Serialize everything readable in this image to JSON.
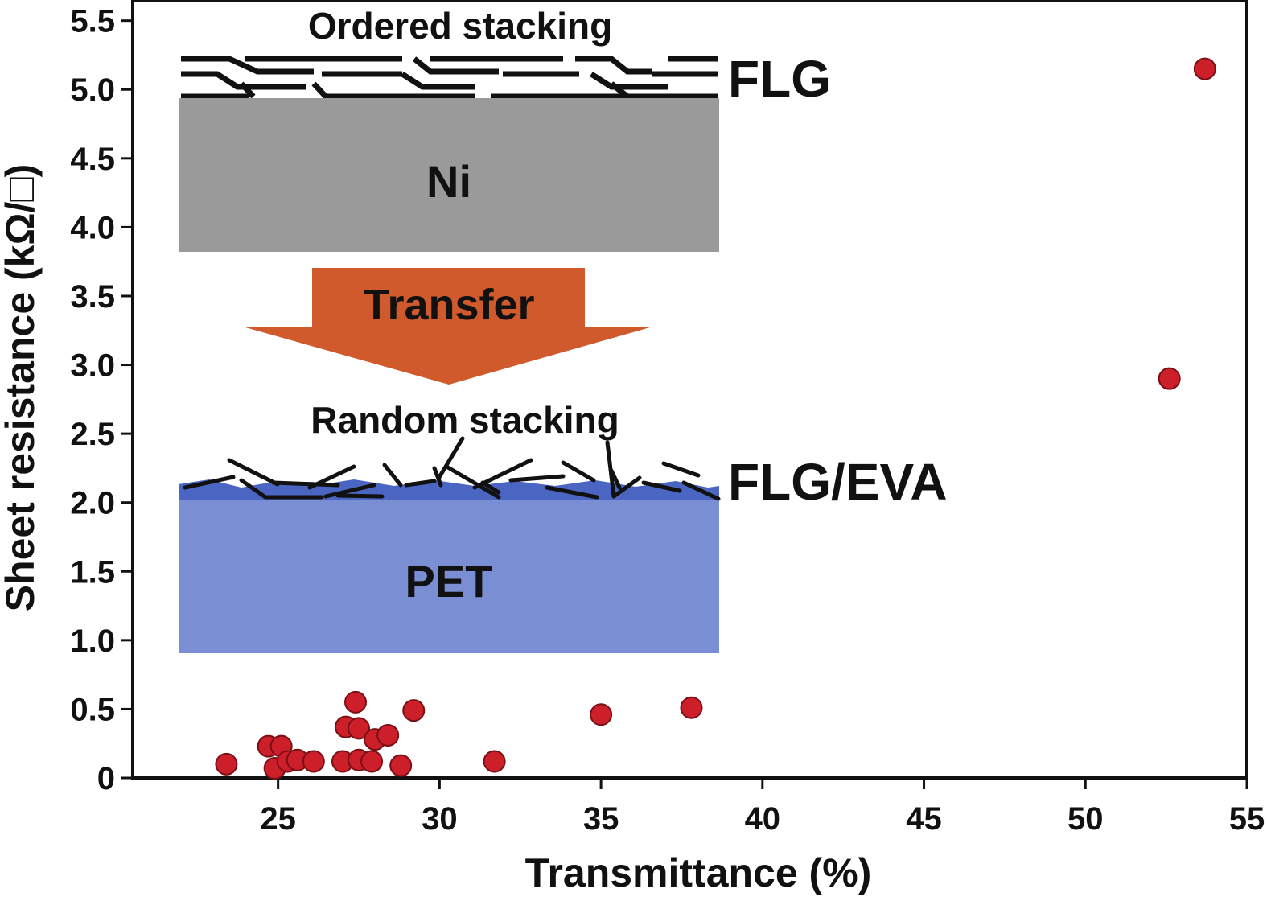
{
  "chart_data": {
    "type": "scatter",
    "xlabel": "Transmittance (%)",
    "ylabel": "Sheet resistance (kΩ/□)",
    "xlim": [
      20.5,
      55
    ],
    "ylim": [
      0,
      5.65
    ],
    "xticks": [
      25,
      30,
      35,
      40,
      45,
      50,
      55
    ],
    "yticks": [
      0,
      0.5,
      1.0,
      1.5,
      2.0,
      2.5,
      3.0,
      3.5,
      4.0,
      4.5,
      5.0,
      5.5
    ],
    "xtick_labels": [
      "25",
      "30",
      "35",
      "40",
      "45",
      "50",
      "55"
    ],
    "ytick_labels": [
      "0",
      "0.5",
      "1.0",
      "1.5",
      "2.0",
      "2.5",
      "3.0",
      "3.5",
      "4.0",
      "4.5",
      "5.0",
      "5.5"
    ],
    "grid": false,
    "marker_color": "#cc1f2a",
    "series": [
      {
        "points": [
          {
            "x": 23.4,
            "y": 0.1
          },
          {
            "x": 24.7,
            "y": 0.23
          },
          {
            "x": 24.9,
            "y": 0.07
          },
          {
            "x": 25.1,
            "y": 0.23
          },
          {
            "x": 25.3,
            "y": 0.12
          },
          {
            "x": 25.6,
            "y": 0.13
          },
          {
            "x": 26.1,
            "y": 0.12
          },
          {
            "x": 27.0,
            "y": 0.12
          },
          {
            "x": 27.1,
            "y": 0.37
          },
          {
            "x": 27.4,
            "y": 0.55
          },
          {
            "x": 27.5,
            "y": 0.36
          },
          {
            "x": 27.5,
            "y": 0.13
          },
          {
            "x": 27.9,
            "y": 0.12
          },
          {
            "x": 28.0,
            "y": 0.28
          },
          {
            "x": 28.4,
            "y": 0.31
          },
          {
            "x": 28.8,
            "y": 0.09
          },
          {
            "x": 29.2,
            "y": 0.49
          },
          {
            "x": 31.7,
            "y": 0.12
          },
          {
            "x": 35.0,
            "y": 0.46
          },
          {
            "x": 37.8,
            "y": 0.51
          },
          {
            "x": 52.6,
            "y": 2.9
          },
          {
            "x": 53.7,
            "y": 5.15
          }
        ]
      }
    ]
  },
  "inset": {
    "top_caption": "Ordered stacking",
    "top_layer_label": "FLG",
    "substrate_top_label": "Ni",
    "arrow_label": "Transfer",
    "bottom_caption": "Random stacking",
    "bottom_layer_label": "FLG/EVA",
    "substrate_bottom_label": "PET",
    "colors": {
      "ni": "#9a9a9a",
      "arrow": "#d05a2c",
      "eva": "#4a66c2",
      "pet": "#7a8fd3"
    }
  }
}
